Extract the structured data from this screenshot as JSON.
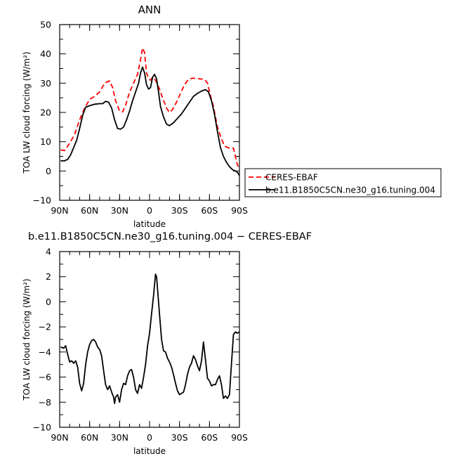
{
  "colors": {
    "observed": "#ff0000",
    "model": "#000000"
  },
  "chart_data": [
    {
      "type": "line",
      "title": "ANN",
      "xlabel": "latitude",
      "ylabel": "TOA LW cloud forcing (W/m²)",
      "xlim": [
        90,
        -90
      ],
      "ylim": [
        -10,
        50
      ],
      "x_ticks": [
        90,
        60,
        30,
        0,
        -30,
        -60,
        -90
      ],
      "x_tick_labels": [
        "90N",
        "60N",
        "30N",
        "0",
        "30S",
        "60S",
        "90S"
      ],
      "y_ticks": [
        -10,
        0,
        10,
        20,
        30,
        40,
        50
      ],
      "y_tick_labels": [
        "−10",
        "0",
        "10",
        "20",
        "30",
        "40",
        "50"
      ],
      "legend_position": "right",
      "series": [
        {
          "name": "CERES-EBAF",
          "color": "#ff0000",
          "dash": "dashed",
          "points": [
            [
              89,
              7.2
            ],
            [
              85,
              7.0
            ],
            [
              80,
              9.5
            ],
            [
              75,
              12.5
            ],
            [
              70,
              17.5
            ],
            [
              65,
              21.5
            ],
            [
              60,
              24.5
            ],
            [
              55,
              25.5
            ],
            [
              50,
              27.0
            ],
            [
              45,
              30.0
            ],
            [
              40,
              30.8
            ],
            [
              37,
              28.5
            ],
            [
              34,
              24.0
            ],
            [
              30,
              20.5
            ],
            [
              27,
              20.2
            ],
            [
              24,
              22.5
            ],
            [
              20,
              27.0
            ],
            [
              16,
              30.0
            ],
            [
              12,
              33.0
            ],
            [
              9,
              38.0
            ],
            [
              7,
              42.0
            ],
            [
              5,
              40.5
            ],
            [
              3,
              33.5
            ],
            [
              1,
              31.5
            ],
            [
              -1,
              31.0
            ],
            [
              -3,
              32.0
            ],
            [
              -6,
              31.0
            ],
            [
              -10,
              28.0
            ],
            [
              -13,
              25.0
            ],
            [
              -17,
              21.5
            ],
            [
              -20,
              20.0
            ],
            [
              -23,
              21.0
            ],
            [
              -27,
              23.5
            ],
            [
              -31,
              26.5
            ],
            [
              -35,
              29.5
            ],
            [
              -39,
              31.3
            ],
            [
              -43,
              31.7
            ],
            [
              -50,
              31.5
            ],
            [
              -55,
              31.3
            ],
            [
              -58,
              30.0
            ],
            [
              -60,
              27.0
            ],
            [
              -64,
              22.0
            ],
            [
              -68,
              15.0
            ],
            [
              -72,
              11.0
            ],
            [
              -75,
              8.5
            ],
            [
              -80,
              7.8
            ],
            [
              -84,
              7.8
            ],
            [
              -86,
              5.0
            ],
            [
              -88,
              2.0
            ],
            [
              -90,
              1.0
            ]
          ]
        },
        {
          "name": "b.e11.B1850C5CN.ne30_g16.tuning.004",
          "color": "#000000",
          "dash": "solid",
          "points": [
            [
              89,
              3.5
            ],
            [
              85,
              3.5
            ],
            [
              82,
              4.0
            ],
            [
              79,
              5.5
            ],
            [
              76,
              8.0
            ],
            [
              73,
              10.5
            ],
            [
              70,
              14.5
            ],
            [
              67,
              19.0
            ],
            [
              64,
              21.8
            ],
            [
              60,
              22.3
            ],
            [
              55,
              22.8
            ],
            [
              50,
              23.0
            ],
            [
              47,
              23.0
            ],
            [
              44,
              23.8
            ],
            [
              41,
              23.5
            ],
            [
              38,
              21.5
            ],
            [
              35,
              17.5
            ],
            [
              32,
              14.5
            ],
            [
              29,
              14.3
            ],
            [
              26,
              15.0
            ],
            [
              23,
              17.5
            ],
            [
              20,
              20.5
            ],
            [
              17,
              24.0
            ],
            [
              14,
              27.0
            ],
            [
              11,
              30.0
            ],
            [
              9,
              33.5
            ],
            [
              7,
              35.5
            ],
            [
              5,
              33.5
            ],
            [
              3,
              29.5
            ],
            [
              1,
              28.0
            ],
            [
              -1,
              28.5
            ],
            [
              -3,
              32.0
            ],
            [
              -5,
              33.0
            ],
            [
              -7,
              31.5
            ],
            [
              -9,
              27.0
            ],
            [
              -11,
              22.0
            ],
            [
              -14,
              18.5
            ],
            [
              -17,
              16.0
            ],
            [
              -20,
              15.5
            ],
            [
              -24,
              16.5
            ],
            [
              -28,
              18.0
            ],
            [
              -32,
              19.5
            ],
            [
              -36,
              21.5
            ],
            [
              -40,
              23.5
            ],
            [
              -44,
              25.5
            ],
            [
              -48,
              26.5
            ],
            [
              -52,
              27.3
            ],
            [
              -56,
              27.8
            ],
            [
              -59,
              27.0
            ],
            [
              -62,
              24.0
            ],
            [
              -65,
              19.5
            ],
            [
              -68,
              13.5
            ],
            [
              -71,
              8.0
            ],
            [
              -74,
              5.0
            ],
            [
              -77,
              3.0
            ],
            [
              -80,
              1.5
            ],
            [
              -83,
              0.5
            ],
            [
              -86,
              0.0
            ],
            [
              -88,
              -0.5
            ],
            [
              -90,
              -1.5
            ]
          ]
        }
      ]
    },
    {
      "type": "line",
      "title": "b.e11.B1850C5CN.ne30_g16.tuning.004 − CERES-EBAF",
      "xlabel": "latitude",
      "ylabel": "TOA LW cloud forcing (W/m²)",
      "xlim": [
        90,
        -90
      ],
      "ylim": [
        -10,
        4
      ],
      "x_ticks": [
        90,
        60,
        30,
        0,
        -30,
        -60,
        -90
      ],
      "x_tick_labels": [
        "90N",
        "60N",
        "30N",
        "0",
        "30S",
        "60S",
        "90S"
      ],
      "y_ticks": [
        -10,
        -8,
        -6,
        -4,
        -2,
        0,
        2,
        4
      ],
      "y_tick_labels": [
        "−10",
        "−8",
        "−6",
        "−4",
        "−2",
        "0",
        "2",
        "4"
      ],
      "series": [
        {
          "color": "#000000",
          "dash": "solid",
          "points": [
            [
              89,
              -3.6
            ],
            [
              86,
              -3.7
            ],
            [
              84,
              -3.5
            ],
            [
              82,
              -4.2
            ],
            [
              80,
              -4.8
            ],
            [
              78,
              -4.7
            ],
            [
              76,
              -4.9
            ],
            [
              74,
              -4.7
            ],
            [
              72,
              -5.2
            ],
            [
              70,
              -6.5
            ],
            [
              68,
              -7.1
            ],
            [
              66,
              -6.5
            ],
            [
              64,
              -5.0
            ],
            [
              62,
              -4.0
            ],
            [
              60,
              -3.4
            ],
            [
              58,
              -3.1
            ],
            [
              56,
              -3.0
            ],
            [
              54,
              -3.2
            ],
            [
              52,
              -3.6
            ],
            [
              50,
              -3.8
            ],
            [
              48,
              -4.3
            ],
            [
              46,
              -5.5
            ],
            [
              44,
              -6.6
            ],
            [
              42,
              -7.0
            ],
            [
              40,
              -6.7
            ],
            [
              38,
              -7.2
            ],
            [
              36,
              -7.6
            ],
            [
              35,
              -8.1
            ],
            [
              34,
              -7.6
            ],
            [
              32,
              -7.4
            ],
            [
              30,
              -8.0
            ],
            [
              28,
              -7.0
            ],
            [
              26,
              -6.5
            ],
            [
              24,
              -6.6
            ],
            [
              22,
              -5.9
            ],
            [
              20,
              -5.5
            ],
            [
              18,
              -5.4
            ],
            [
              16,
              -6.0
            ],
            [
              14,
              -7.0
            ],
            [
              12,
              -7.3
            ],
            [
              10,
              -6.6
            ],
            [
              8,
              -6.9
            ],
            [
              6,
              -6.0
            ],
            [
              4,
              -5.0
            ],
            [
              2,
              -3.5
            ],
            [
              0,
              -2.5
            ],
            [
              -2,
              -1.0
            ],
            [
              -4,
              0.5
            ],
            [
              -6,
              2.2
            ],
            [
              -7,
              2.0
            ],
            [
              -8,
              1.0
            ],
            [
              -10,
              -1.0
            ],
            [
              -12,
              -3.0
            ],
            [
              -14,
              -3.9
            ],
            [
              -16,
              -4.0
            ],
            [
              -18,
              -4.5
            ],
            [
              -20,
              -4.8
            ],
            [
              -22,
              -5.2
            ],
            [
              -24,
              -5.8
            ],
            [
              -26,
              -6.5
            ],
            [
              -28,
              -7.1
            ],
            [
              -30,
              -7.4
            ],
            [
              -32,
              -7.3
            ],
            [
              -34,
              -7.2
            ],
            [
              -36,
              -6.6
            ],
            [
              -38,
              -5.8
            ],
            [
              -40,
              -5.2
            ],
            [
              -42,
              -4.9
            ],
            [
              -44,
              -4.3
            ],
            [
              -46,
              -4.6
            ],
            [
              -48,
              -5.1
            ],
            [
              -50,
              -5.5
            ],
            [
              -52,
              -4.7
            ],
            [
              -54,
              -3.2
            ],
            [
              -56,
              -4.6
            ],
            [
              -58,
              -6.1
            ],
            [
              -60,
              -6.3
            ],
            [
              -62,
              -6.7
            ],
            [
              -64,
              -6.6
            ],
            [
              -66,
              -6.6
            ],
            [
              -68,
              -6.2
            ],
            [
              -70,
              -5.9
            ],
            [
              -72,
              -6.6
            ],
            [
              -74,
              -7.7
            ],
            [
              -76,
              -7.5
            ],
            [
              -78,
              -7.7
            ],
            [
              -80,
              -7.4
            ],
            [
              -82,
              -5.0
            ],
            [
              -84,
              -2.6
            ],
            [
              -86,
              -2.4
            ],
            [
              -88,
              -2.5
            ],
            [
              -90,
              -2.4
            ]
          ]
        }
      ]
    }
  ]
}
